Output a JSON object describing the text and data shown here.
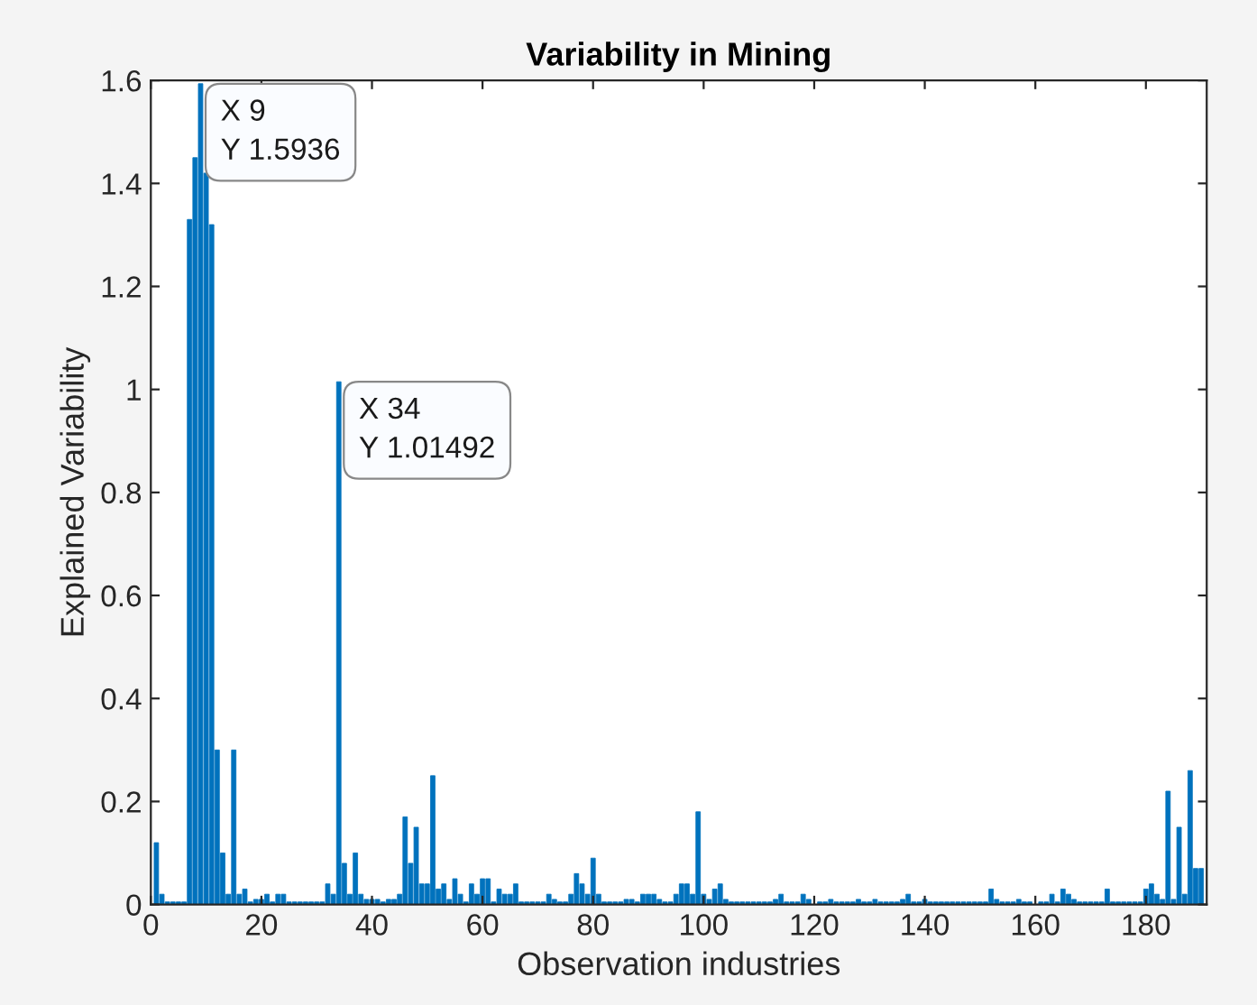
{
  "chart_data": {
    "type": "bar",
    "title": "Variability in Mining",
    "xlabel": "Observation industries",
    "ylabel": "Explained Variability",
    "x": [
      1,
      2,
      3,
      4,
      5,
      6,
      7,
      8,
      9,
      10,
      11,
      12,
      13,
      14,
      15,
      16,
      17,
      18,
      19,
      20,
      21,
      22,
      23,
      24,
      25,
      26,
      27,
      28,
      29,
      30,
      31,
      32,
      33,
      34,
      35,
      36,
      37,
      38,
      39,
      40,
      41,
      42,
      43,
      44,
      45,
      46,
      47,
      48,
      49,
      50,
      51,
      52,
      53,
      54,
      55,
      56,
      57,
      58,
      59,
      60,
      61,
      62,
      63,
      64,
      65,
      66,
      67,
      68,
      69,
      70,
      71,
      72,
      73,
      74,
      75,
      76,
      77,
      78,
      79,
      80,
      81,
      82,
      83,
      84,
      85,
      86,
      87,
      88,
      89,
      90,
      91,
      92,
      93,
      94,
      95,
      96,
      97,
      98,
      99,
      100,
      101,
      102,
      103,
      104,
      105,
      106,
      107,
      108,
      109,
      110,
      111,
      112,
      113,
      114,
      115,
      116,
      117,
      118,
      119,
      120,
      121,
      122,
      123,
      124,
      125,
      126,
      127,
      128,
      129,
      130,
      131,
      132,
      133,
      134,
      135,
      136,
      137,
      138,
      139,
      140,
      141,
      142,
      143,
      144,
      145,
      146,
      147,
      148,
      149,
      150,
      151,
      152,
      153,
      154,
      155,
      156,
      157,
      158,
      159,
      160,
      161,
      162,
      163,
      164,
      165,
      166,
      167,
      168,
      169,
      170,
      171,
      172,
      173,
      174,
      175,
      176,
      177,
      178,
      179,
      180,
      181,
      182,
      183,
      184,
      185,
      186,
      187,
      188,
      189,
      190
    ],
    "values": [
      0.12,
      0.02,
      0.005,
      0.005,
      0.005,
      0.005,
      1.33,
      1.45,
      1.5936,
      1.42,
      1.32,
      0.3,
      0.1,
      0.02,
      0.3,
      0.02,
      0.03,
      0.005,
      0.01,
      0.01,
      0.02,
      0.005,
      0.02,
      0.02,
      0.005,
      0.005,
      0.005,
      0.005,
      0.005,
      0.005,
      0.005,
      0.04,
      0.02,
      1.01492,
      0.08,
      0.02,
      0.1,
      0.02,
      0.01,
      0.01,
      0.01,
      0.005,
      0.01,
      0.01,
      0.02,
      0.17,
      0.08,
      0.15,
      0.04,
      0.04,
      0.25,
      0.03,
      0.04,
      0.01,
      0.05,
      0.02,
      0.005,
      0.04,
      0.02,
      0.05,
      0.05,
      0.005,
      0.03,
      0.02,
      0.02,
      0.04,
      0.005,
      0.005,
      0.005,
      0.005,
      0.005,
      0.02,
      0.01,
      0.005,
      0.005,
      0.02,
      0.06,
      0.04,
      0.02,
      0.09,
      0.02,
      0.005,
      0.005,
      0.005,
      0.005,
      0.01,
      0.01,
      0.005,
      0.02,
      0.02,
      0.02,
      0.01,
      0.005,
      0.005,
      0.02,
      0.04,
      0.04,
      0.02,
      0.18,
      0.02,
      0.01,
      0.03,
      0.04,
      0.01,
      0.005,
      0.005,
      0.005,
      0.005,
      0.005,
      0.005,
      0.005,
      0.005,
      0.01,
      0.02,
      0.005,
      0.005,
      0.005,
      0.02,
      0.01,
      null,
      0.005,
      0.005,
      0.01,
      0.005,
      0.005,
      0.005,
      0.005,
      0.01,
      0.005,
      0.005,
      0.01,
      0.005,
      0.005,
      0.005,
      0.005,
      0.01,
      0.02,
      0.005,
      0.005,
      0.01,
      0.005,
      0.005,
      0.005,
      0.005,
      0.005,
      0.005,
      0.005,
      0.005,
      0.005,
      0.005,
      0.005,
      0.03,
      0.01,
      0.005,
      0.005,
      0.005,
      0.01,
      0.005,
      0.005,
      null,
      0.005,
      0.005,
      0.02,
      0.005,
      0.03,
      0.02,
      0.01,
      0.005,
      0.005,
      0.005,
      0.005,
      0.005,
      0.03,
      0.005,
      0.005,
      0.005,
      0.005,
      0.005,
      0.005,
      0.03,
      0.04,
      0.02,
      0.01,
      0.22,
      0.01,
      0.15,
      0.02,
      0.26,
      0.07,
      0.07
    ],
    "color": "#0072bd",
    "xlim": [
      0,
      191
    ],
    "xticks": [
      0,
      20,
      40,
      60,
      80,
      100,
      120,
      140,
      160,
      180
    ],
    "ylim": [
      0,
      1.6
    ],
    "yticks": [
      0,
      0.2,
      0.4,
      0.6,
      0.8,
      1,
      1.2,
      1.4,
      1.6
    ],
    "annotations": [
      {
        "text": "X 9\nY 1.5936",
        "x": 9,
        "y": 1.5936
      },
      {
        "text": "X 34\nY 1.01492",
        "x": 34,
        "y": 1.01492
      }
    ]
  }
}
